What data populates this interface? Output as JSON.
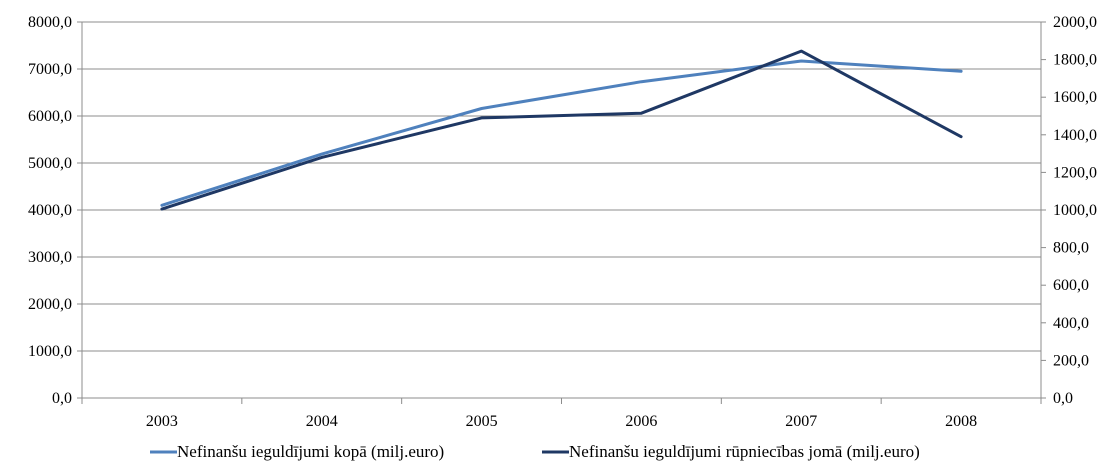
{
  "chart_data": {
    "type": "line",
    "categories": [
      "2003",
      "2004",
      "2005",
      "2006",
      "2007",
      "2008"
    ],
    "series": [
      {
        "name": "Nefinanšu ieguldījumi kopā (milj.euro)",
        "axis": "left",
        "color": "#4f81bd",
        "values": [
          4100,
          5190,
          6160,
          6730,
          7170,
          6950
        ]
      },
      {
        "name": "Nefinanšu ieguldījumi rūpniecības jomā (milj.euro)",
        "axis": "right",
        "color": "#1f3864",
        "values": [
          1005,
          1280,
          1490,
          1515,
          1845,
          1390
        ]
      }
    ],
    "y_left": {
      "ylim": [
        0,
        8000
      ],
      "ticks": [
        "0,0",
        "1000,0",
        "2000,0",
        "3000,0",
        "4000,0",
        "5000,0",
        "6000,0",
        "7000,0",
        "8000,0"
      ]
    },
    "y_right": {
      "ylim": [
        0,
        2000
      ],
      "ticks": [
        "0,0",
        "200,0",
        "400,0",
        "600,0",
        "800,0",
        "1000,0",
        "1200,0",
        "1400,0",
        "1600,0",
        "1800,0",
        "2000,0"
      ]
    },
    "grid": true,
    "legend_position": "bottom",
    "title": "",
    "xlabel": "",
    "ylabel": ""
  }
}
